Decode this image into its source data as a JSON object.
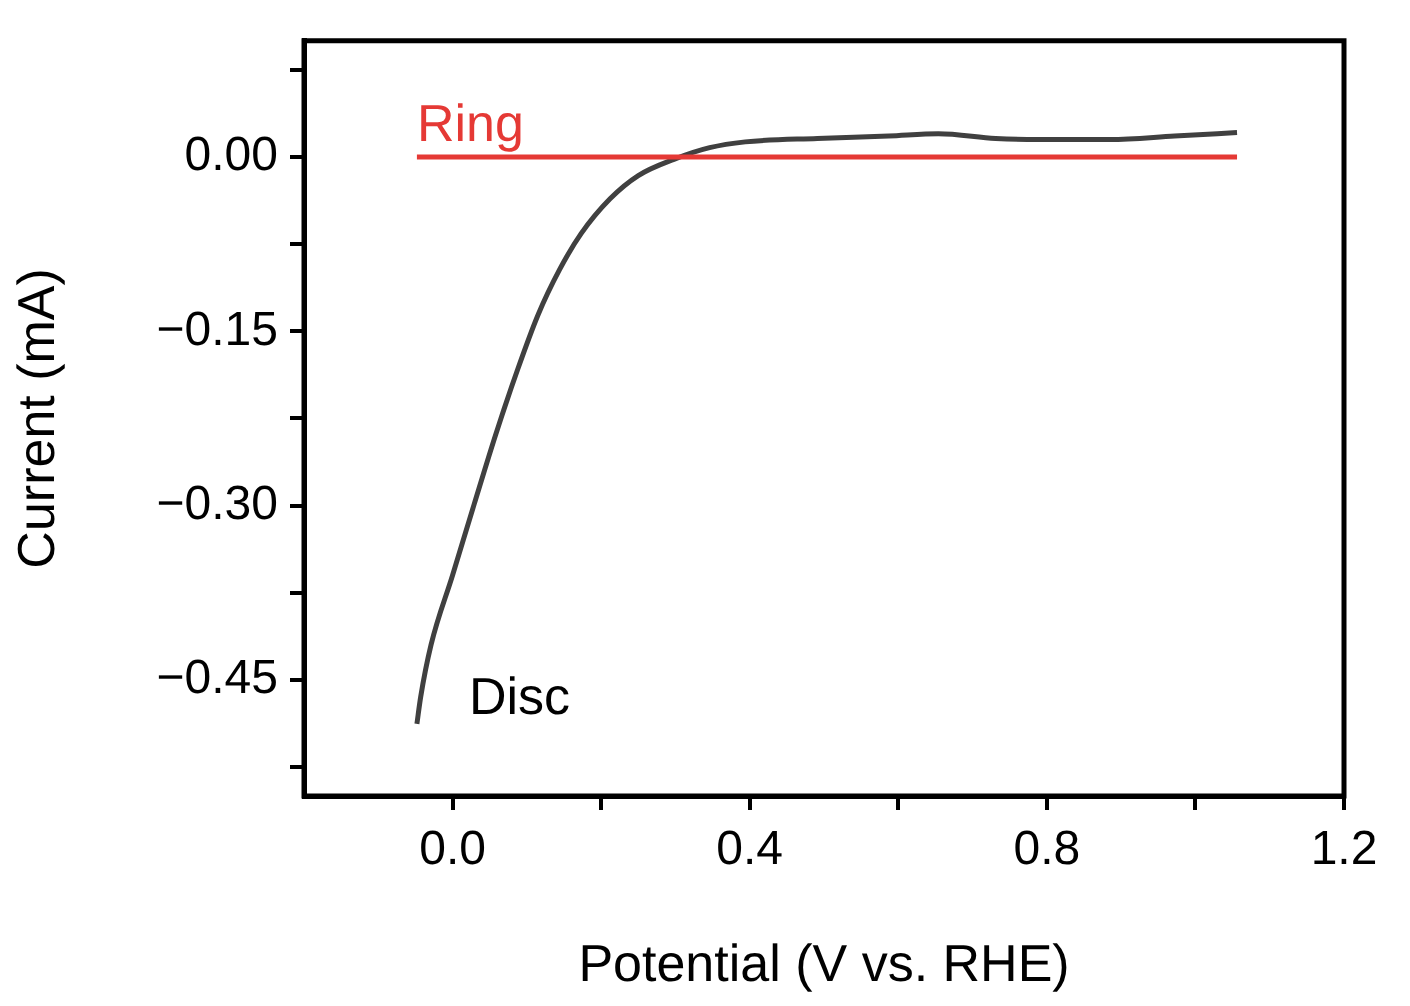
{
  "chart_data": {
    "type": "line",
    "xlabel": "Potential (V vs. RHE)",
    "ylabel": "Current (mA)",
    "xlim": [
      -0.2,
      1.2
    ],
    "ylim": [
      -0.55,
      0.1
    ],
    "xticks": [
      {
        "value": 0,
        "label": "0.0"
      },
      {
        "value": 0.2,
        "label": null
      },
      0.4,
      {
        "value": 0.6,
        "label": null
      },
      0.8,
      {
        "value": 1.0,
        "label": null
      },
      1.2
    ],
    "yticks": [
      {
        "value": 0.075,
        "label": null
      },
      {
        "value": 0,
        "label": "0.00"
      },
      {
        "value": -0.075,
        "label": null
      },
      {
        "value": -0.15,
        "label": "−0.15"
      },
      {
        "value": -0.225,
        "label": null
      },
      {
        "value": -0.3,
        "label": "−0.30"
      },
      {
        "value": -0.375,
        "label": null
      },
      {
        "value": -0.45,
        "label": "−0.45"
      },
      {
        "value": -0.525,
        "label": null
      }
    ],
    "grid": false,
    "legend": false,
    "series": [
      {
        "name": "Ring",
        "color": "#e53935",
        "x": [
          -0.048,
          1.056
        ],
        "values": [
          0,
          0
        ]
      },
      {
        "name": "Disc",
        "color": "#404040",
        "x": [
          -0.048,
          -0.043,
          -0.029,
          0,
          0.029,
          0.058,
          0.087,
          0.115,
          0.144,
          0.173,
          0.212,
          0.25,
          0.298,
          0.346,
          0.394,
          0.491,
          0.587,
          0.654,
          0.731,
          0.789,
          0.885,
          0.972,
          1.056
        ],
        "values": [
          -0.488,
          -0.465,
          -0.42,
          -0.36,
          -0.299,
          -0.239,
          -0.184,
          -0.136,
          -0.097,
          -0.066,
          -0.036,
          -0.016,
          -0.002,
          0.008,
          0.013,
          0.016,
          0.018,
          0.02,
          0.016,
          0.015,
          0.015,
          0.018,
          0.021
        ]
      }
    ]
  }
}
